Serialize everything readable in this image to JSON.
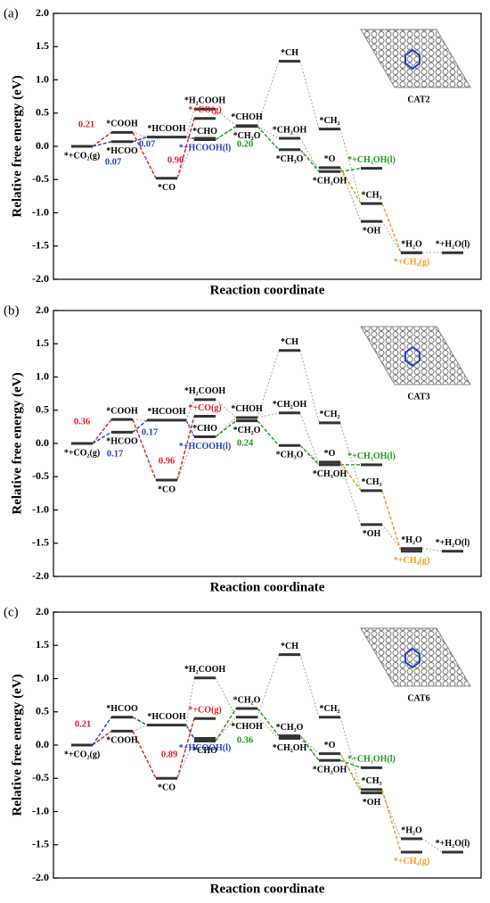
{
  "chart_data": [
    {
      "type": "energy-diagram",
      "panel": "(a)",
      "catalyst": "CAT2",
      "xlabel": "Reaction coordinate",
      "ylabel": "Relative free energy (eV)",
      "ylim": [
        -2,
        2
      ],
      "yticks": [
        {
          "value": 2,
          "label": "2.0"
        },
        {
          "value": 1.5,
          "label": "1.5"
        },
        {
          "value": 1,
          "label": "1.0"
        },
        {
          "value": 0.5,
          "label": "0.5"
        },
        {
          "value": 0,
          "label": "0.0"
        },
        {
          "value": -0.5,
          "label": "-0.5"
        },
        {
          "value": -1,
          "label": "-1.0"
        },
        {
          "value": -1.5,
          "label": "-1.5"
        },
        {
          "value": -2,
          "label": "-2.0"
        }
      ],
      "levels": [
        {
          "label": "*+CO₂(g)",
          "value": 0
        },
        {
          "label": "*COOH",
          "value": 0.21
        },
        {
          "label": "*HCOO",
          "value": 0.07
        },
        {
          "label": "*HCOOH",
          "value": 0.14
        },
        {
          "label": "*CO",
          "value": -0.48
        },
        {
          "label": "*H₂COOH",
          "value": 0.56
        },
        {
          "label": "*+CO(g)",
          "value": 0.42
        },
        {
          "label": "*CHO",
          "value": 0.1
        },
        {
          "label": "*+HCOOH(l)",
          "value": 0.12
        },
        {
          "label": "*CHOH",
          "value": 0.31
        },
        {
          "label": "*CH₂O",
          "value": 0.3
        },
        {
          "label": "*CH",
          "value": 1.28
        },
        {
          "label": "*CH₂OH",
          "value": 0.12
        },
        {
          "label": "*CH₃O",
          "value": -0.05
        },
        {
          "label": "*CH₂",
          "value": 0.26
        },
        {
          "label": "*O",
          "value": -0.32
        },
        {
          "label": "*CH₃OH",
          "value": -0.38
        },
        {
          "label": "*+CH₃OH(l)",
          "value": -0.33
        },
        {
          "label": "*CH₃",
          "value": -0.86
        },
        {
          "label": "*OH",
          "value": -1.13
        },
        {
          "label": "*H₂O",
          "value": -1.6
        },
        {
          "label": "*+CH₄(g)",
          "value": -1.6
        },
        {
          "label": "*+H₂O(l)",
          "value": -1.6
        }
      ],
      "annotations": [
        "0.21",
        "0.07",
        "0.07",
        "0.90",
        "0.20"
      ]
    },
    {
      "type": "energy-diagram",
      "panel": "(b)",
      "catalyst": "CAT3",
      "xlabel": "Reaction coordinate",
      "ylabel": "Relative free energy (eV)",
      "ylim": [
        -2,
        2
      ],
      "yticks": [
        {
          "value": 2,
          "label": "2.0"
        },
        {
          "value": 1.5,
          "label": "1.5"
        },
        {
          "value": 1,
          "label": "1.0"
        },
        {
          "value": 0.5,
          "label": "0.5"
        },
        {
          "value": 0,
          "label": "0.0"
        },
        {
          "value": -0.5,
          "label": "-0.5"
        },
        {
          "value": -1,
          "label": "-1.0"
        },
        {
          "value": -1.5,
          "label": "-1.5"
        },
        {
          "value": -2,
          "label": "-2.0"
        }
      ],
      "levels": [
        {
          "label": "*+CO₂(g)",
          "value": 0
        },
        {
          "label": "*COOH",
          "value": 0.36
        },
        {
          "label": "*HCOO",
          "value": 0.17
        },
        {
          "label": "*HCOOH",
          "value": 0.35
        },
        {
          "label": "*CO",
          "value": -0.55
        },
        {
          "label": "*H₂COOH",
          "value": 0.66
        },
        {
          "label": "*+CO(g)",
          "value": 0.41
        },
        {
          "label": "*CHO",
          "value": 0.1
        },
        {
          "label": "*+HCOOH(l)",
          "value": 0.1
        },
        {
          "label": "*CHOH",
          "value": 0.39
        },
        {
          "label": "*CH₂O",
          "value": 0.34
        },
        {
          "label": "*CH",
          "value": 1.4
        },
        {
          "label": "*CH₂OH",
          "value": 0.46
        },
        {
          "label": "*CH₃O",
          "value": -0.03
        },
        {
          "label": "*CH₂",
          "value": 0.31
        },
        {
          "label": "*O",
          "value": -0.28
        },
        {
          "label": "*CH₃OH",
          "value": -0.32
        },
        {
          "label": "*+CH₃OH(l)",
          "value": -0.32
        },
        {
          "label": "*CH₃",
          "value": -0.71
        },
        {
          "label": "*OH",
          "value": -1.22
        },
        {
          "label": "*H₂O",
          "value": -1.58
        },
        {
          "label": "*+CH₄(g)",
          "value": -1.62
        },
        {
          "label": "*+H₂O(l)",
          "value": -1.62
        }
      ],
      "annotations": [
        "0.36",
        "0.17",
        "0.17",
        "0.96",
        "0.24"
      ]
    },
    {
      "type": "energy-diagram",
      "panel": "(c)",
      "catalyst": "CAT6",
      "xlabel": "Reaction coordinate",
      "ylabel": "Relative free energy (eV)",
      "ylim": [
        -2,
        2
      ],
      "yticks": [
        {
          "value": 2,
          "label": "2.0"
        },
        {
          "value": 1.5,
          "label": "1.5"
        },
        {
          "value": 1,
          "label": "1.0"
        },
        {
          "value": 0.5,
          "label": "0.5"
        },
        {
          "value": 0,
          "label": "0.0"
        },
        {
          "value": -0.5,
          "label": "-0.5"
        },
        {
          "value": -1,
          "label": "-1.0"
        },
        {
          "value": -1.5,
          "label": "-1.5"
        },
        {
          "value": -2,
          "label": "-2.0"
        }
      ],
      "levels": [
        {
          "label": "*+CO₂(g)",
          "value": 0
        },
        {
          "label": "*COOH",
          "value": 0.21
        },
        {
          "label": "*HCOO",
          "value": 0.42
        },
        {
          "label": "*HCOOH",
          "value": 0.3
        },
        {
          "label": "*CO",
          "value": -0.5
        },
        {
          "label": "*H₂COOH",
          "value": 1.01
        },
        {
          "label": "*+CO(g)",
          "value": 0.4
        },
        {
          "label": "*CHO",
          "value": 0.06
        },
        {
          "label": "*+HCOOH(l)",
          "value": 0.1
        },
        {
          "label": "*CHOH",
          "value": 0.42
        },
        {
          "label": "*CH₂O",
          "value": 0.55
        },
        {
          "label": "*CH",
          "value": 1.36
        },
        {
          "label": "*CH₂OH",
          "value": 0.1
        },
        {
          "label": "*CH₃O",
          "value": 0.14
        },
        {
          "label": "*CH₂",
          "value": 0.42
        },
        {
          "label": "*O",
          "value": -0.13
        },
        {
          "label": "*CH₃OH",
          "value": -0.23
        },
        {
          "label": "*+CH₃OH(l)",
          "value": -0.34
        },
        {
          "label": "*CH₃",
          "value": -0.67
        },
        {
          "label": "*OH",
          "value": -0.72
        },
        {
          "label": "*H₂O",
          "value": -1.41
        },
        {
          "label": "*+CH₄(g)",
          "value": -1.61
        },
        {
          "label": "*+H₂O(l)",
          "value": -1.61
        }
      ],
      "annotations": [
        "0.21",
        "0.89",
        "0.36"
      ]
    }
  ]
}
